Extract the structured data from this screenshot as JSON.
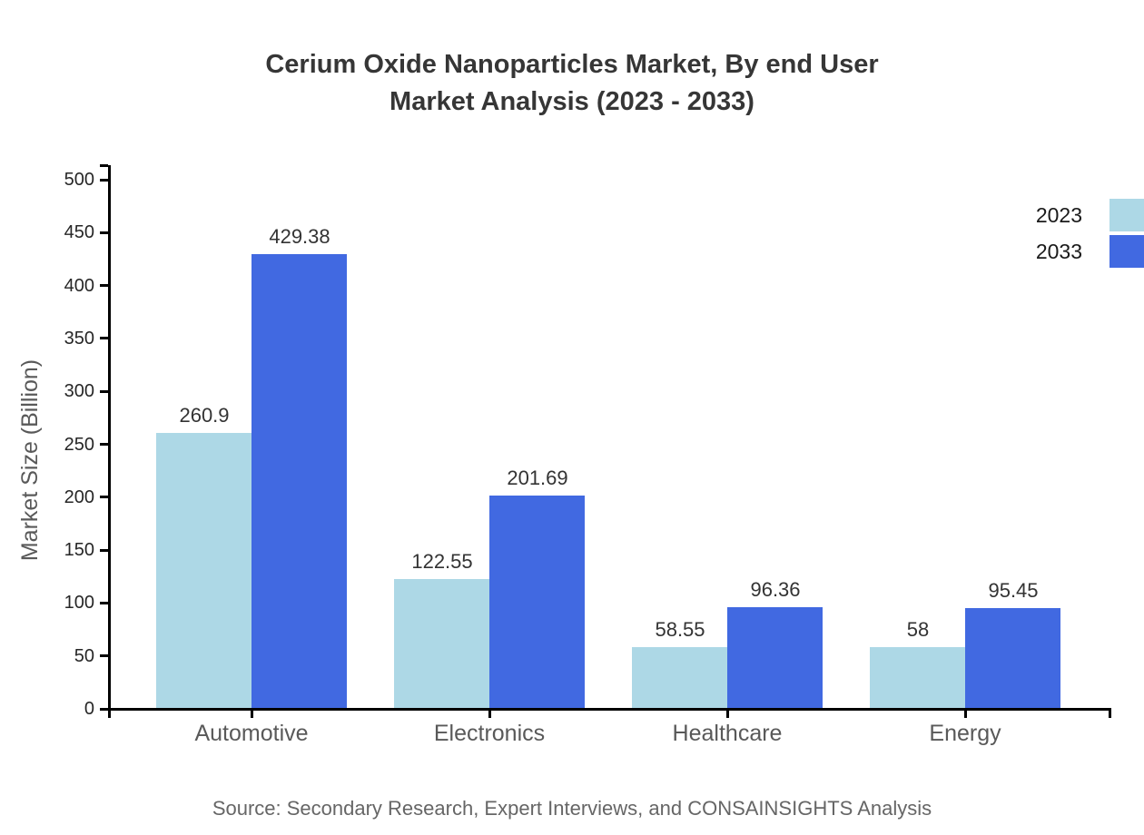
{
  "title_lines": [
    "Cerium Oxide Nanoparticles Market, By end User",
    "Market Analysis (2023 - 2033)"
  ],
  "source_text": "Source: Secondary Research, Expert Interviews, and CONSAINSIGHTS Analysis",
  "chart_data": {
    "type": "bar",
    "title": "Cerium Oxide Nanoparticles Market, By end User Market Analysis (2023 - 2033)",
    "ylabel": "Market Size (Billion)",
    "xlabel": "",
    "categories": [
      "Automotive",
      "Electronics",
      "Healthcare",
      "Energy"
    ],
    "series": [
      {
        "name": "2023",
        "color": "#ADD8E6",
        "values": [
          260.9,
          122.55,
          58.55,
          58
        ]
      },
      {
        "name": "2033",
        "color": "#4169E1",
        "values": [
          429.38,
          201.69,
          96.36,
          95.45
        ]
      }
    ],
    "ylim": [
      0,
      500
    ],
    "y_ticks": [
      0,
      50,
      100,
      150,
      200,
      250,
      300,
      350,
      400,
      450,
      500
    ],
    "grid": false,
    "legend_position": "top-right",
    "axis_color": "#000000"
  }
}
